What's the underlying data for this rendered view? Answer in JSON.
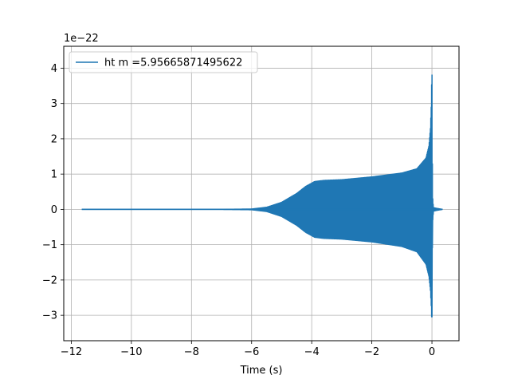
{
  "chart_data": {
    "type": "line",
    "xlabel": "Time (s)",
    "ylabel": "",
    "y_offset_label": "1e−22",
    "xlim": [
      -12.25,
      0.9
    ],
    "ylim": [
      -3.72,
      4.62
    ],
    "y_scale_exponent": -22,
    "grid": true,
    "legend_position": "top-left",
    "x_ticks": [
      -12,
      -10,
      -8,
      -6,
      -4,
      -2,
      0
    ],
    "x_tick_labels": [
      "−12",
      "−10",
      "−8",
      "−6",
      "−4",
      "−2",
      "0"
    ],
    "y_ticks": [
      -3,
      -2,
      -1,
      0,
      1,
      2,
      3,
      4
    ],
    "y_tick_labels": [
      "−3",
      "−2",
      "−1",
      "0",
      "1",
      "2",
      "3",
      "4"
    ],
    "series": [
      {
        "name": "ht m =5.95665871495622",
        "color": "#1f77b4",
        "x_start": -11.65,
        "x_end": 0.35,
        "merger_time": 0.0,
        "envelope_upper": [
          [
            -11.65,
            0.0
          ],
          [
            -7.0,
            0.0
          ],
          [
            -6.0,
            0.01
          ],
          [
            -5.5,
            0.06
          ],
          [
            -5.0,
            0.2
          ],
          [
            -4.5,
            0.45
          ],
          [
            -4.2,
            0.65
          ],
          [
            -3.9,
            0.79
          ],
          [
            -3.6,
            0.82
          ],
          [
            -3.0,
            0.84
          ],
          [
            -2.0,
            0.92
          ],
          [
            -1.0,
            1.03
          ],
          [
            -0.5,
            1.15
          ],
          [
            -0.2,
            1.45
          ],
          [
            -0.1,
            1.8
          ],
          [
            -0.05,
            2.3
          ],
          [
            -0.02,
            3.0
          ],
          [
            0.0,
            4.2
          ],
          [
            0.02,
            0.4
          ],
          [
            0.05,
            0.05
          ],
          [
            0.15,
            0.03
          ],
          [
            0.35,
            0.0
          ]
        ],
        "envelope_lower": [
          [
            -11.65,
            0.0
          ],
          [
            -7.0,
            0.0
          ],
          [
            -6.0,
            -0.01
          ],
          [
            -5.5,
            -0.06
          ],
          [
            -5.0,
            -0.2
          ],
          [
            -4.5,
            -0.45
          ],
          [
            -4.2,
            -0.65
          ],
          [
            -3.9,
            -0.79
          ],
          [
            -3.6,
            -0.82
          ],
          [
            -3.0,
            -0.84
          ],
          [
            -2.0,
            -0.92
          ],
          [
            -1.0,
            -1.05
          ],
          [
            -0.5,
            -1.2
          ],
          [
            -0.2,
            -1.55
          ],
          [
            -0.1,
            -1.9
          ],
          [
            -0.05,
            -2.3
          ],
          [
            -0.02,
            -2.8
          ],
          [
            0.0,
            -3.35
          ],
          [
            0.02,
            -0.4
          ],
          [
            0.05,
            -0.05
          ],
          [
            0.15,
            -0.03
          ],
          [
            0.35,
            0.0
          ]
        ]
      }
    ]
  }
}
